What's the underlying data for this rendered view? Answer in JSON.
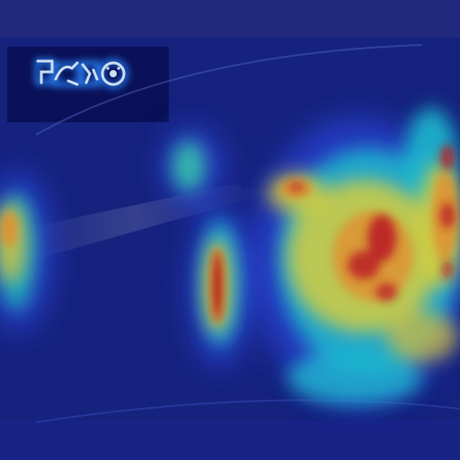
{
  "image": {
    "kind": "attention-heatmap-overlay",
    "colormap": "jet",
    "colors": {
      "base": "#0c1a6e",
      "panel": "#16237f",
      "screen": "#0a1156",
      "cool": "#1f2fb5",
      "cyan": "#1ec8d8",
      "yellow": "#e9dd3a",
      "orange": "#f39a2a",
      "red": "#c91f1f",
      "icon_glow": "#2a8cff",
      "icon_stroke": "#dff0ff"
    },
    "icon": "dashboard-indicator-icon"
  }
}
